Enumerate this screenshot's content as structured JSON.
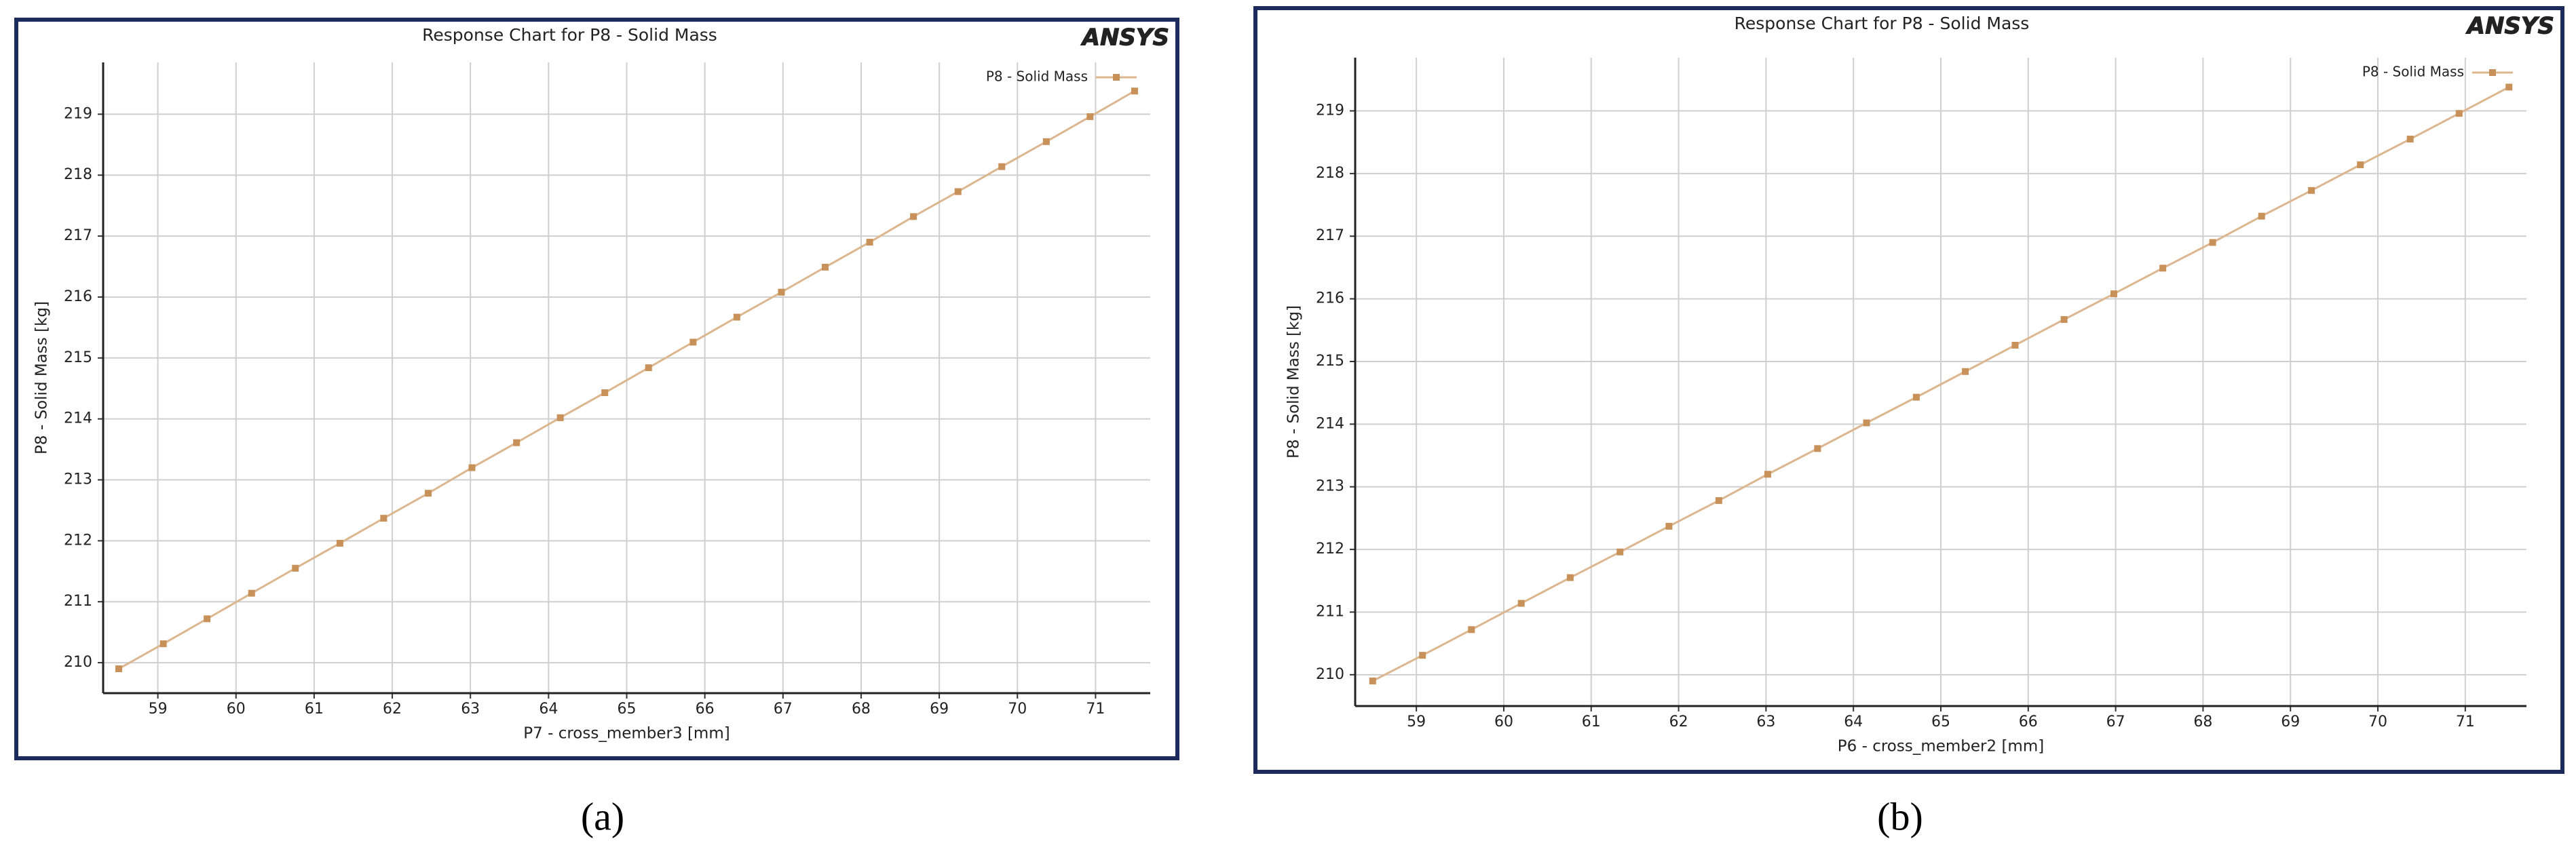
{
  "chart_data": [
    {
      "type": "line",
      "title": "Response Chart for P8 - Solid Mass",
      "logo": "ANSYS",
      "caption": "(a)",
      "x_label": "P7 - cross_member3  [mm]",
      "y_label": "P8 - Solid Mass  [kg]",
      "x": [
        58.5,
        59.07,
        59.63,
        60.2,
        60.76,
        61.33,
        61.89,
        62.46,
        63.02,
        63.59,
        64.15,
        64.72,
        65.28,
        65.85,
        66.41,
        66.98,
        67.54,
        68.11,
        68.67,
        69.24,
        69.8,
        70.37,
        70.93,
        71.5
      ],
      "series": [
        {
          "name": "P8 - Solid Mass",
          "color": "#c8915a",
          "values": [
            209.9,
            210.31,
            210.72,
            211.14,
            211.55,
            211.96,
            212.37,
            212.78,
            213.2,
            213.61,
            214.02,
            214.43,
            214.84,
            215.26,
            215.67,
            216.08,
            216.49,
            216.9,
            217.32,
            217.73,
            218.14,
            218.55,
            218.96,
            219.38
          ]
        }
      ],
      "xlim": [
        58.3,
        71.7
      ],
      "ylim": [
        209.5,
        219.85
      ],
      "xticks": [
        59,
        60,
        61,
        62,
        63,
        64,
        65,
        66,
        67,
        68,
        69,
        70,
        71
      ],
      "yticks": [
        210,
        211,
        212,
        213,
        214,
        215,
        216,
        217,
        218,
        219
      ],
      "grid": true,
      "legend": "upper right"
    },
    {
      "type": "line",
      "title": "Response Chart for P8 - Solid Mass",
      "logo": "ANSYS",
      "caption": "(b)",
      "x_label": "P6 - cross_member2  [mm]",
      "y_label": "P8 - Solid Mass  [kg]",
      "x": [
        58.5,
        59.07,
        59.63,
        60.2,
        60.76,
        61.33,
        61.89,
        62.46,
        63.02,
        63.59,
        64.15,
        64.72,
        65.28,
        65.85,
        66.41,
        66.98,
        67.54,
        68.11,
        68.67,
        69.24,
        69.8,
        70.37,
        70.93,
        71.5
      ],
      "series": [
        {
          "name": "P8 - Solid Mass",
          "color": "#c8915a",
          "values": [
            209.9,
            210.31,
            210.72,
            211.14,
            211.55,
            211.96,
            212.37,
            212.78,
            213.2,
            213.61,
            214.02,
            214.43,
            214.84,
            215.26,
            215.67,
            216.08,
            216.49,
            216.9,
            217.32,
            217.73,
            218.14,
            218.55,
            218.96,
            219.38
          ]
        }
      ],
      "xlim": [
        58.3,
        71.7
      ],
      "ylim": [
        209.5,
        219.85
      ],
      "xticks": [
        59,
        60,
        61,
        62,
        63,
        64,
        65,
        66,
        67,
        68,
        69,
        70,
        71
      ],
      "yticks": [
        210,
        211,
        212,
        213,
        214,
        215,
        216,
        217,
        218,
        219
      ],
      "grid": true,
      "legend": "upper right"
    }
  ]
}
